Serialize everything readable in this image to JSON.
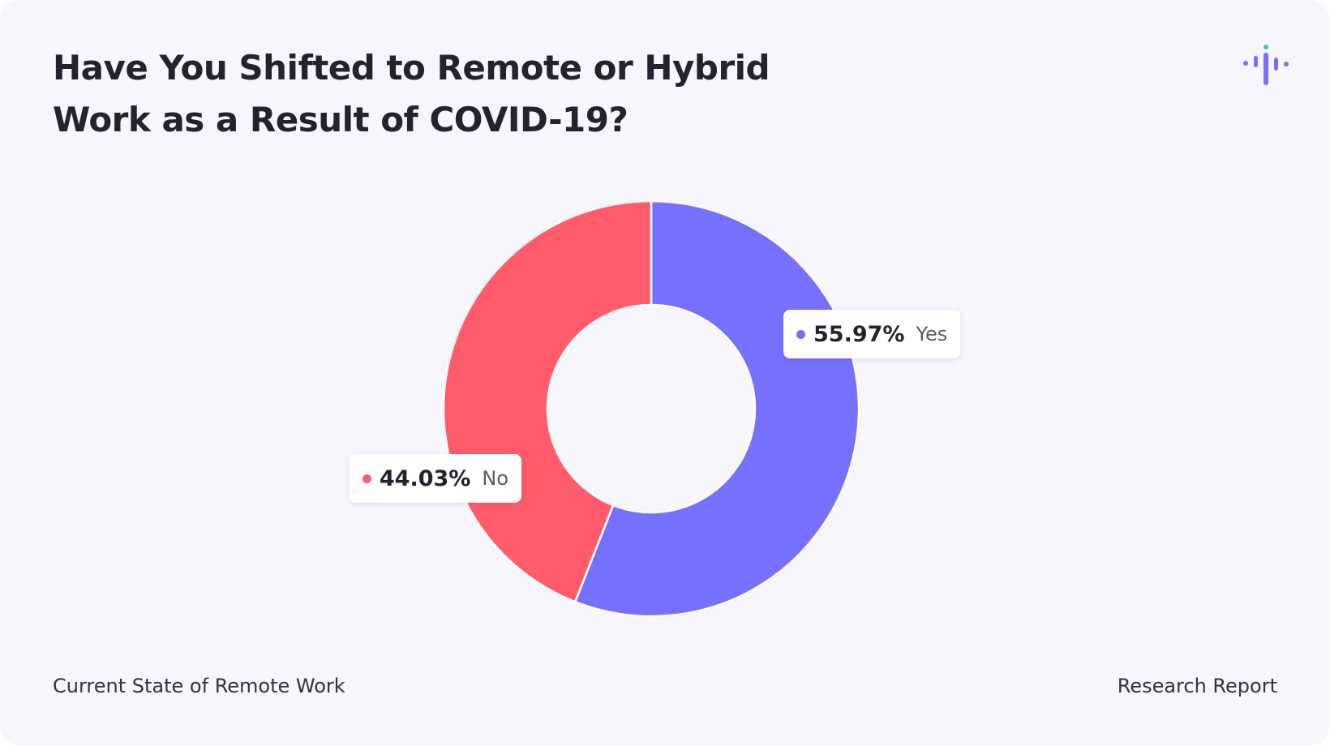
{
  "chart_data": {
    "type": "pie",
    "donut": true,
    "title": "Have You Shifted to Remote or Hybrid Work as a Result of COVID-19?",
    "categories": [
      "Yes",
      "No"
    ],
    "values": [
      55.97,
      44.03
    ],
    "value_labels": [
      "55.97%",
      "44.03%"
    ],
    "colors": [
      "#7670ff",
      "#ff5b6a"
    ],
    "footnote": "Current State of Remote Work",
    "source": "Research Report"
  }
}
